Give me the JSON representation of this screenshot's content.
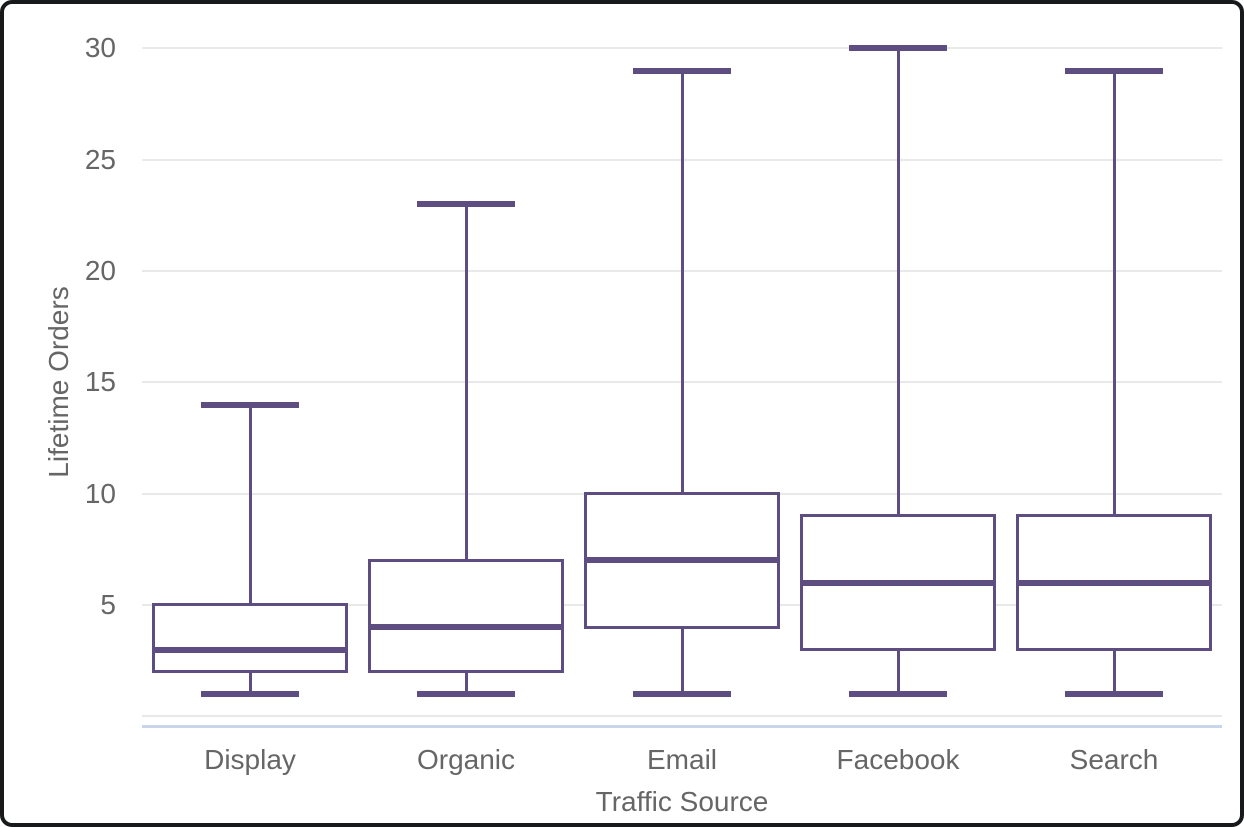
{
  "chart_data": {
    "type": "boxplot",
    "title": "",
    "xlabel": "Traffic Source",
    "ylabel": "Lifetime Orders",
    "categories": [
      "Display",
      "Organic",
      "Email",
      "Facebook",
      "Search"
    ],
    "series": [
      {
        "name": "Display",
        "whisker_low": 1,
        "q1": 2,
        "median": 3,
        "q3": 5,
        "whisker_high": 14
      },
      {
        "name": "Organic",
        "whisker_low": 1,
        "q1": 2,
        "median": 4,
        "q3": 7,
        "whisker_high": 23
      },
      {
        "name": "Email",
        "whisker_low": 1,
        "q1": 4,
        "median": 7,
        "q3": 10,
        "whisker_high": 29
      },
      {
        "name": "Facebook",
        "whisker_low": 1,
        "q1": 3,
        "median": 6,
        "q3": 9,
        "whisker_high": 30
      },
      {
        "name": "Search",
        "whisker_low": 1,
        "q1": 3,
        "median": 6,
        "q3": 9,
        "whisker_high": 29
      }
    ],
    "yticks": [
      5,
      10,
      15,
      20,
      25,
      30
    ],
    "gridline_values": [
      0,
      5,
      10,
      15,
      20,
      25,
      30
    ],
    "ylim": [
      0,
      31
    ],
    "grid": true,
    "legend": false,
    "colors": {
      "box": "#5e4d80",
      "gridline": "#e9e9e9",
      "baseline": "#c9d6ea",
      "text": "#666666",
      "frame": "#17191b",
      "background": "#ffffff"
    }
  }
}
